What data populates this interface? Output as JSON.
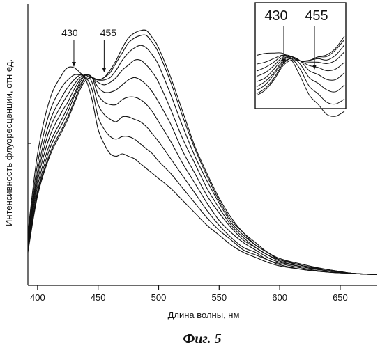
{
  "chart_data": {
    "type": "line",
    "xlabel": "Длина волны, нм",
    "ylabel": "Интенсивность флуоресценции, отн ед.",
    "xlim": [
      392,
      680
    ],
    "ylim": [
      0,
      1
    ],
    "x_ticks": [
      400,
      450,
      500,
      550,
      600,
      650
    ],
    "y_ticks_labeled": false,
    "grid": false,
    "annotations": [
      {
        "text": "430",
        "x": 430
      },
      {
        "text": "455",
        "x": 455
      }
    ],
    "inset": {
      "annotations": [
        {
          "text": "430"
        },
        {
          "text": "455"
        }
      ]
    },
    "x": [
      392,
      400,
      410,
      420,
      425,
      430,
      435,
      440,
      445,
      450,
      455,
      460,
      465,
      470,
      475,
      480,
      485,
      490,
      495,
      500,
      510,
      520,
      530,
      540,
      550,
      560,
      570,
      580,
      590,
      600,
      620,
      640,
      660,
      680
    ],
    "series": [
      {
        "values": [
          0.18,
          0.5,
          0.72,
          0.82,
          0.85,
          0.85,
          0.83,
          0.8,
          0.72,
          0.6,
          0.54,
          0.5,
          0.49,
          0.5,
          0.49,
          0.48,
          0.46,
          0.44,
          0.42,
          0.4,
          0.36,
          0.31,
          0.26,
          0.21,
          0.17,
          0.13,
          0.1,
          0.08,
          0.06,
          0.045,
          0.03,
          0.02,
          0.015,
          0.01
        ]
      },
      {
        "values": [
          0.17,
          0.46,
          0.67,
          0.77,
          0.8,
          0.82,
          0.82,
          0.81,
          0.76,
          0.65,
          0.6,
          0.57,
          0.56,
          0.57,
          0.57,
          0.56,
          0.54,
          0.52,
          0.5,
          0.47,
          0.42,
          0.36,
          0.3,
          0.24,
          0.19,
          0.15,
          0.11,
          0.09,
          0.07,
          0.05,
          0.03,
          0.02,
          0.015,
          0.01
        ]
      },
      {
        "values": [
          0.16,
          0.43,
          0.63,
          0.73,
          0.77,
          0.8,
          0.82,
          0.82,
          0.79,
          0.7,
          0.66,
          0.64,
          0.63,
          0.65,
          0.65,
          0.64,
          0.63,
          0.61,
          0.58,
          0.55,
          0.48,
          0.41,
          0.34,
          0.27,
          0.21,
          0.16,
          0.12,
          0.1,
          0.07,
          0.055,
          0.035,
          0.02,
          0.015,
          0.01
        ]
      },
      {
        "values": [
          0.15,
          0.41,
          0.6,
          0.7,
          0.74,
          0.78,
          0.81,
          0.82,
          0.81,
          0.74,
          0.71,
          0.7,
          0.7,
          0.72,
          0.73,
          0.73,
          0.72,
          0.7,
          0.67,
          0.63,
          0.55,
          0.46,
          0.38,
          0.3,
          0.23,
          0.18,
          0.14,
          0.11,
          0.08,
          0.06,
          0.04,
          0.025,
          0.015,
          0.01
        ]
      },
      {
        "values": [
          0.14,
          0.39,
          0.57,
          0.67,
          0.71,
          0.76,
          0.8,
          0.82,
          0.81,
          0.77,
          0.75,
          0.75,
          0.76,
          0.78,
          0.8,
          0.81,
          0.8,
          0.78,
          0.75,
          0.71,
          0.62,
          0.51,
          0.42,
          0.33,
          0.26,
          0.2,
          0.15,
          0.12,
          0.09,
          0.065,
          0.04,
          0.025,
          0.015,
          0.01
        ]
      },
      {
        "values": [
          0.13,
          0.37,
          0.54,
          0.64,
          0.69,
          0.74,
          0.79,
          0.82,
          0.81,
          0.79,
          0.78,
          0.79,
          0.81,
          0.84,
          0.86,
          0.88,
          0.88,
          0.86,
          0.83,
          0.79,
          0.68,
          0.56,
          0.46,
          0.36,
          0.28,
          0.21,
          0.16,
          0.12,
          0.09,
          0.07,
          0.045,
          0.025,
          0.015,
          0.01
        ]
      },
      {
        "values": [
          0.12,
          0.35,
          0.52,
          0.62,
          0.67,
          0.73,
          0.78,
          0.81,
          0.81,
          0.8,
          0.8,
          0.81,
          0.84,
          0.88,
          0.91,
          0.93,
          0.94,
          0.93,
          0.9,
          0.86,
          0.74,
          0.61,
          0.49,
          0.39,
          0.3,
          0.22,
          0.17,
          0.13,
          0.1,
          0.07,
          0.045,
          0.03,
          0.015,
          0.01
        ]
      },
      {
        "values": [
          0.11,
          0.34,
          0.5,
          0.6,
          0.65,
          0.71,
          0.77,
          0.81,
          0.81,
          0.8,
          0.81,
          0.83,
          0.87,
          0.91,
          0.95,
          0.97,
          0.98,
          0.98,
          0.95,
          0.91,
          0.79,
          0.65,
          0.52,
          0.41,
          0.31,
          0.23,
          0.18,
          0.13,
          0.1,
          0.075,
          0.045,
          0.03,
          0.015,
          0.01
        ]
      },
      {
        "values": [
          0.1,
          0.33,
          0.49,
          0.59,
          0.64,
          0.7,
          0.76,
          0.8,
          0.81,
          0.8,
          0.81,
          0.84,
          0.88,
          0.93,
          0.97,
          0.99,
          1.0,
          1.0,
          0.97,
          0.93,
          0.81,
          0.67,
          0.53,
          0.42,
          0.32,
          0.24,
          0.18,
          0.14,
          0.1,
          0.075,
          0.05,
          0.03,
          0.015,
          0.01
        ]
      }
    ]
  },
  "figure": {
    "caption": "Фиг. 5"
  }
}
